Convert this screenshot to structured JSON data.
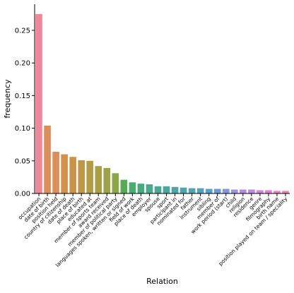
{
  "chart_data": {
    "type": "bar",
    "xlabel": "Relation",
    "ylabel": "frequency",
    "ylim": [
      0,
      0.29
    ],
    "yticks": [
      "0.00",
      "0.05",
      "0.10",
      "0.15",
      "0.20",
      "0.25"
    ],
    "grid": false,
    "categories": [
      "occupation",
      "date of birth",
      "position held",
      "country of citizenship",
      "date of death",
      "place of birth",
      "educated at",
      "member of sports team",
      "award received",
      "member of political party",
      "languages spoken, written or signed",
      "field of work",
      "place of death",
      "employer",
      "spouse",
      "sport",
      "participant in",
      "nominated for",
      "father",
      "instrument",
      "sibling",
      "member of",
      "work period (start)",
      "child",
      "religion",
      "residence",
      "genre",
      "filmography",
      "birth name",
      "position played on team / speciality"
    ],
    "values": [
      0.275,
      0.104,
      0.064,
      0.06,
      0.056,
      0.051,
      0.05,
      0.042,
      0.039,
      0.031,
      0.021,
      0.017,
      0.015,
      0.014,
      0.011,
      0.011,
      0.01,
      0.009,
      0.008,
      0.008,
      0.007,
      0.007,
      0.007,
      0.006,
      0.006,
      0.006,
      0.005,
      0.005,
      0.004,
      0.004
    ],
    "colors": [
      "#f0879a",
      "#dd8e59",
      "#dd8e59",
      "#d5904a",
      "#cb9444",
      "#c09843",
      "#b59c43",
      "#a9a043",
      "#9ca343",
      "#8ba743",
      "#53ad52",
      "#46ae70",
      "#47ab80",
      "#48aa8c",
      "#49a995",
      "#49a89e",
      "#4aa7a5",
      "#4ba6ad",
      "#4da5b5",
      "#4fa3bf",
      "#56a0ca",
      "#6a9bd6",
      "#8595e2",
      "#9d91e8",
      "#b08cea",
      "#c188e8",
      "#d385e0",
      "#e27fd5",
      "#e884c4",
      "#ec86b3"
    ]
  }
}
